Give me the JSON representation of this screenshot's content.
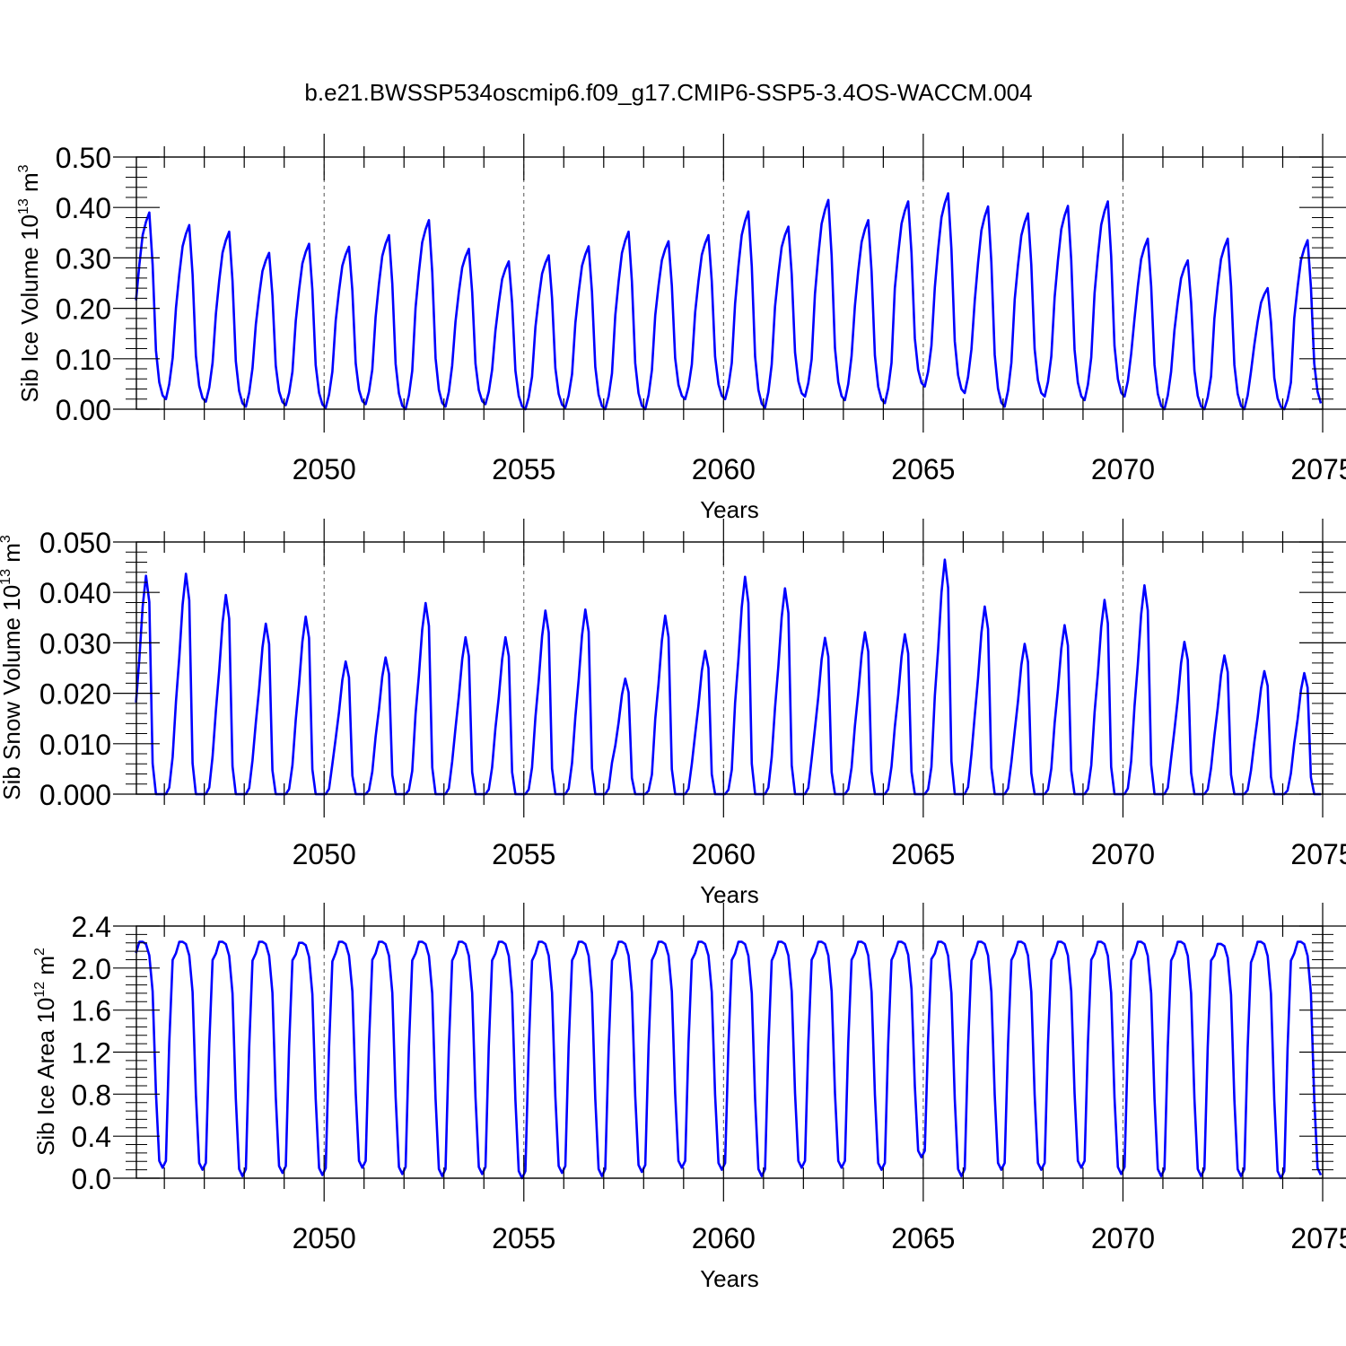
{
  "figure": {
    "title": "b.e21.BWSSP534oscmip6.f09_g17.CMIP6-SSP5-3.4OS-WACCM.004",
    "line_color": "#0000ff",
    "grid_color": "#555555",
    "axis_color": "#000000"
  },
  "chart_data": [
    {
      "type": "line",
      "name": "sib-ice-volume",
      "ylabel": {
        "main": "Sib Ice Volume 10",
        "exp": "13",
        "unit": " m",
        "unit_exp": "3"
      },
      "xlabel": "Years",
      "xlim": [
        2045.3,
        2075.0
      ],
      "ylim": [
        0.0,
        0.5
      ],
      "yticks": [
        "0.00",
        "0.10",
        "0.20",
        "0.30",
        "0.40",
        "0.50"
      ],
      "xticks": [
        "2050",
        "2055",
        "2060",
        "2065",
        "2070",
        "2075"
      ],
      "x_start": 2045.29,
      "x_step": 0.08333,
      "y_decimals": 3,
      "cycles": [
        {
          "year": 2045,
          "peak": 0.39,
          "min": 0.02
        },
        {
          "year": 2046,
          "peak": 0.365,
          "min": 0.015
        },
        {
          "year": 2047,
          "peak": 0.352,
          "min": 0.005
        },
        {
          "year": 2048,
          "peak": 0.31,
          "min": 0.008
        },
        {
          "year": 2049,
          "peak": 0.328,
          "min": 0.003
        },
        {
          "year": 2050,
          "peak": 0.322,
          "min": 0.01
        },
        {
          "year": 2051,
          "peak": 0.345,
          "min": 0.0
        },
        {
          "year": 2052,
          "peak": 0.375,
          "min": 0.005
        },
        {
          "year": 2053,
          "peak": 0.318,
          "min": 0.01
        },
        {
          "year": 2054,
          "peak": 0.293,
          "min": 0.0
        },
        {
          "year": 2055,
          "peak": 0.305,
          "min": 0.003
        },
        {
          "year": 2056,
          "peak": 0.323,
          "min": 0.0
        },
        {
          "year": 2057,
          "peak": 0.352,
          "min": 0.0
        },
        {
          "year": 2058,
          "peak": 0.333,
          "min": 0.02
        },
        {
          "year": 2059,
          "peak": 0.345,
          "min": 0.02
        },
        {
          "year": 2060,
          "peak": 0.392,
          "min": 0.003
        },
        {
          "year": 2061,
          "peak": 0.362,
          "min": 0.025
        },
        {
          "year": 2062,
          "peak": 0.415,
          "min": 0.018
        },
        {
          "year": 2063,
          "peak": 0.375,
          "min": 0.012
        },
        {
          "year": 2064,
          "peak": 0.412,
          "min": 0.045
        },
        {
          "year": 2065,
          "peak": 0.428,
          "min": 0.032
        },
        {
          "year": 2066,
          "peak": 0.402,
          "min": 0.005
        },
        {
          "year": 2067,
          "peak": 0.388,
          "min": 0.025
        },
        {
          "year": 2068,
          "peak": 0.403,
          "min": 0.018
        },
        {
          "year": 2069,
          "peak": 0.412,
          "min": 0.025
        },
        {
          "year": 2070,
          "peak": 0.338,
          "min": 0.0
        },
        {
          "year": 2071,
          "peak": 0.295,
          "min": 0.0
        },
        {
          "year": 2072,
          "peak": 0.338,
          "min": 0.0
        },
        {
          "year": 2073,
          "peak": 0.24,
          "min": 0.0
        },
        {
          "year": 2074,
          "peak": 0.335,
          "min": 0.005
        }
      ]
    },
    {
      "type": "line",
      "name": "sib-snow-volume",
      "ylabel": {
        "main": "Sib Snow Volume 10",
        "exp": "13",
        "unit": " m",
        "unit_exp": "3"
      },
      "xlabel": "Years",
      "xlim": [
        2045.3,
        2075.0
      ],
      "ylim": [
        0.0,
        0.05
      ],
      "yticks": [
        "0.000",
        "0.010",
        "0.020",
        "0.030",
        "0.040",
        "0.050"
      ],
      "xticks": [
        "2050",
        "2055",
        "2060",
        "2065",
        "2070",
        "2075"
      ],
      "x_start": 2045.29,
      "x_step": 0.08333,
      "y_decimals": 4,
      "cycles": [
        {
          "year": 2045,
          "peak": 0.0433
        },
        {
          "year": 2046,
          "peak": 0.0437
        },
        {
          "year": 2047,
          "peak": 0.0395
        },
        {
          "year": 2048,
          "peak": 0.0338
        },
        {
          "year": 2049,
          "peak": 0.0352
        },
        {
          "year": 2050,
          "peak": 0.0263
        },
        {
          "year": 2051,
          "peak": 0.0271
        },
        {
          "year": 2052,
          "peak": 0.0379
        },
        {
          "year": 2053,
          "peak": 0.0311
        },
        {
          "year": 2054,
          "peak": 0.0311
        },
        {
          "year": 2055,
          "peak": 0.0364
        },
        {
          "year": 2056,
          "peak": 0.0366
        },
        {
          "year": 2057,
          "peak": 0.0229
        },
        {
          "year": 2058,
          "peak": 0.0354
        },
        {
          "year": 2059,
          "peak": 0.0284
        },
        {
          "year": 2060,
          "peak": 0.0431
        },
        {
          "year": 2061,
          "peak": 0.0408
        },
        {
          "year": 2062,
          "peak": 0.031
        },
        {
          "year": 2063,
          "peak": 0.0321
        },
        {
          "year": 2064,
          "peak": 0.0317
        },
        {
          "year": 2065,
          "peak": 0.0465
        },
        {
          "year": 2066,
          "peak": 0.0372
        },
        {
          "year": 2067,
          "peak": 0.0298
        },
        {
          "year": 2068,
          "peak": 0.0335
        },
        {
          "year": 2069,
          "peak": 0.0385
        },
        {
          "year": 2070,
          "peak": 0.0414
        },
        {
          "year": 2071,
          "peak": 0.0302
        },
        {
          "year": 2072,
          "peak": 0.0275
        },
        {
          "year": 2073,
          "peak": 0.0244
        },
        {
          "year": 2074,
          "peak": 0.024
        }
      ]
    },
    {
      "type": "line",
      "name": "sib-ice-area",
      "ylabel": {
        "main": "Sib Ice Area 10",
        "exp": "12",
        "unit": " m",
        "unit_exp": "2"
      },
      "xlabel": "Years",
      "xlim": [
        2045.3,
        2075.0
      ],
      "ylim": [
        0.0,
        2.4
      ],
      "yticks": [
        "0.0",
        "0.4",
        "0.8",
        "1.2",
        "1.6",
        "2.0",
        "2.4"
      ],
      "xticks": [
        "2050",
        "2055",
        "2060",
        "2065",
        "2070",
        "2075"
      ],
      "x_start": 2045.29,
      "x_step": 0.08333,
      "y_decimals": 3,
      "cycles": [
        {
          "year": 2045,
          "peak": 2.25,
          "min": 0.1
        },
        {
          "year": 2046,
          "peak": 2.25,
          "min": 0.08
        },
        {
          "year": 2047,
          "peak": 2.25,
          "min": 0.02
        },
        {
          "year": 2048,
          "peak": 2.25,
          "min": 0.05
        },
        {
          "year": 2049,
          "peak": 2.24,
          "min": 0.03
        },
        {
          "year": 2050,
          "peak": 2.25,
          "min": 0.1
        },
        {
          "year": 2051,
          "peak": 2.25,
          "min": 0.04
        },
        {
          "year": 2052,
          "peak": 2.25,
          "min": 0.02
        },
        {
          "year": 2053,
          "peak": 2.25,
          "min": 0.04
        },
        {
          "year": 2054,
          "peak": 2.25,
          "min": 0.0
        },
        {
          "year": 2055,
          "peak": 2.25,
          "min": 0.05
        },
        {
          "year": 2056,
          "peak": 2.25,
          "min": 0.02
        },
        {
          "year": 2057,
          "peak": 2.25,
          "min": 0.06
        },
        {
          "year": 2058,
          "peak": 2.25,
          "min": 0.1
        },
        {
          "year": 2059,
          "peak": 2.25,
          "min": 0.08
        },
        {
          "year": 2060,
          "peak": 2.25,
          "min": 0.02
        },
        {
          "year": 2061,
          "peak": 2.25,
          "min": 0.1
        },
        {
          "year": 2062,
          "peak": 2.25,
          "min": 0.1
        },
        {
          "year": 2063,
          "peak": 2.25,
          "min": 0.08
        },
        {
          "year": 2064,
          "peak": 2.25,
          "min": 0.2
        },
        {
          "year": 2065,
          "peak": 2.25,
          "min": 0.02
        },
        {
          "year": 2066,
          "peak": 2.25,
          "min": 0.08
        },
        {
          "year": 2067,
          "peak": 2.25,
          "min": 0.08
        },
        {
          "year": 2068,
          "peak": 2.25,
          "min": 0.1
        },
        {
          "year": 2069,
          "peak": 2.25,
          "min": 0.04
        },
        {
          "year": 2070,
          "peak": 2.25,
          "min": 0.02
        },
        {
          "year": 2071,
          "peak": 2.25,
          "min": 0.02
        },
        {
          "year": 2072,
          "peak": 2.23,
          "min": 0.02
        },
        {
          "year": 2073,
          "peak": 2.25,
          "min": 0.0
        },
        {
          "year": 2074,
          "peak": 2.25,
          "min": 0.03
        }
      ]
    }
  ]
}
